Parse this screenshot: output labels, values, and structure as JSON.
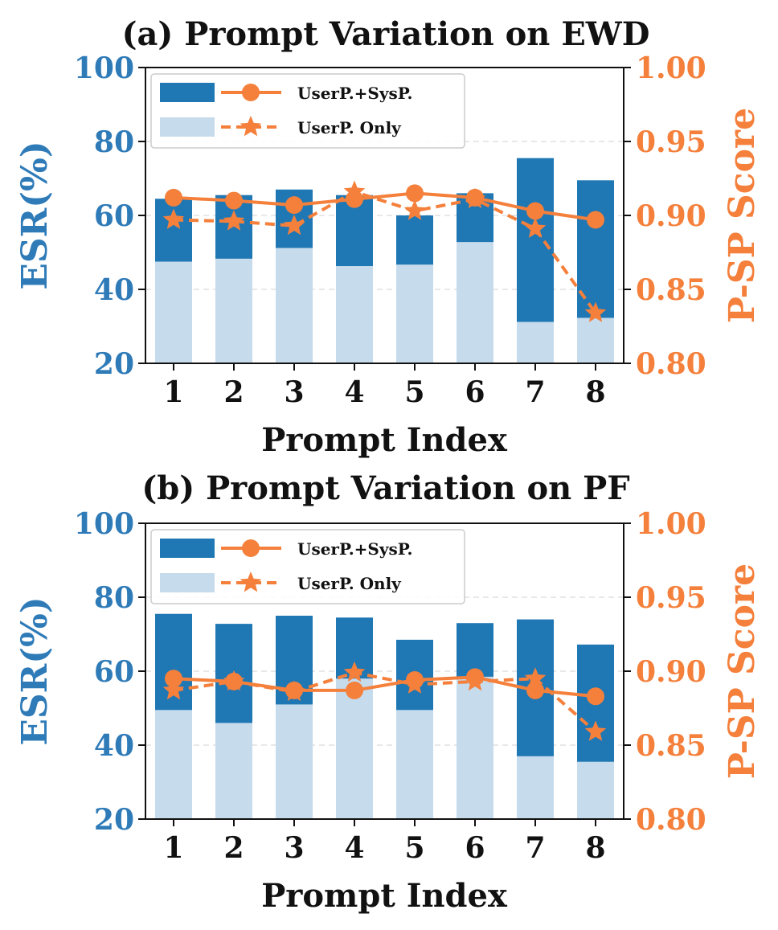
{
  "colors": {
    "bar_dark": "#1f77b4",
    "bar_light": "#c6dbec",
    "line": "#f4803c",
    "left_axis": "#2f7bb8",
    "right_axis": "#f4803c",
    "grid": "#d9d9d9"
  },
  "chart_data": [
    {
      "type": "bar",
      "title": "(a) Prompt Variation on EWD",
      "xlabel": "Prompt Index",
      "ylabel_left": "ESR(%)",
      "ylabel_right": "P-SP Score",
      "categories": [
        "1",
        "2",
        "3",
        "4",
        "5",
        "6",
        "7",
        "8"
      ],
      "ylim_left": [
        20,
        100
      ],
      "yticks_left": [
        "20",
        "40",
        "60",
        "80",
        "100"
      ],
      "ylim_right": [
        0.8,
        1.0
      ],
      "yticks_right": [
        "0.80",
        "0.85",
        "0.90",
        "0.95",
        "1.00"
      ],
      "grid": true,
      "legend_position": "top-left",
      "legend": {
        "line1": "UserP.+SysP.",
        "line2": "UserP. Only"
      },
      "series": [
        {
          "name": "UserP.+SysP.",
          "kind": "bar",
          "axis": "left",
          "values": [
            64.5,
            65.5,
            67,
            65.5,
            60,
            66,
            75.5,
            69.5
          ]
        },
        {
          "name": "UserP. Only",
          "kind": "bar",
          "axis": "left",
          "values": [
            47.5,
            48.3,
            51.2,
            46.3,
            46.7,
            52.8,
            31.2,
            32.3
          ]
        },
        {
          "name": "UserP.+SysP.",
          "kind": "line",
          "marker": "circle",
          "axis": "right",
          "values": [
            0.912,
            0.91,
            0.907,
            0.911,
            0.915,
            0.912,
            0.903,
            0.897
          ]
        },
        {
          "name": "UserP. Only",
          "kind": "line",
          "marker": "star",
          "axis": "right",
          "values": [
            0.897,
            0.896,
            0.893,
            0.916,
            0.903,
            0.911,
            0.891,
            0.834
          ]
        }
      ]
    },
    {
      "type": "bar",
      "title": "(b) Prompt Variation on PF",
      "xlabel": "Prompt Index",
      "ylabel_left": "ESR(%)",
      "ylabel_right": "P-SP Score",
      "categories": [
        "1",
        "2",
        "3",
        "4",
        "5",
        "6",
        "7",
        "8"
      ],
      "ylim_left": [
        20,
        100
      ],
      "yticks_left": [
        "20",
        "40",
        "60",
        "80",
        "100"
      ],
      "ylim_right": [
        0.8,
        1.0
      ],
      "yticks_right": [
        "0.80",
        "0.85",
        "0.90",
        "0.95",
        "1.00"
      ],
      "grid": true,
      "legend_position": "top-left",
      "legend": {
        "line1": "UserP.+SysP.",
        "line2": "UserP. Only"
      },
      "series": [
        {
          "name": "UserP.+SysP.",
          "kind": "bar",
          "axis": "left",
          "values": [
            75.5,
            72.8,
            75,
            74.5,
            68.5,
            73,
            74,
            67.2
          ]
        },
        {
          "name": "UserP. Only",
          "kind": "bar",
          "axis": "left",
          "values": [
            49.5,
            46,
            51,
            58,
            49.5,
            58.5,
            37,
            35.5
          ]
        },
        {
          "name": "UserP.+SysP.",
          "kind": "line",
          "marker": "circle",
          "axis": "right",
          "values": [
            0.895,
            0.893,
            0.887,
            0.887,
            0.894,
            0.896,
            0.887,
            0.883
          ]
        },
        {
          "name": "UserP. Only",
          "kind": "line",
          "marker": "star",
          "axis": "right",
          "values": [
            0.887,
            0.893,
            0.886,
            0.899,
            0.891,
            0.893,
            0.895,
            0.859
          ]
        }
      ]
    }
  ]
}
